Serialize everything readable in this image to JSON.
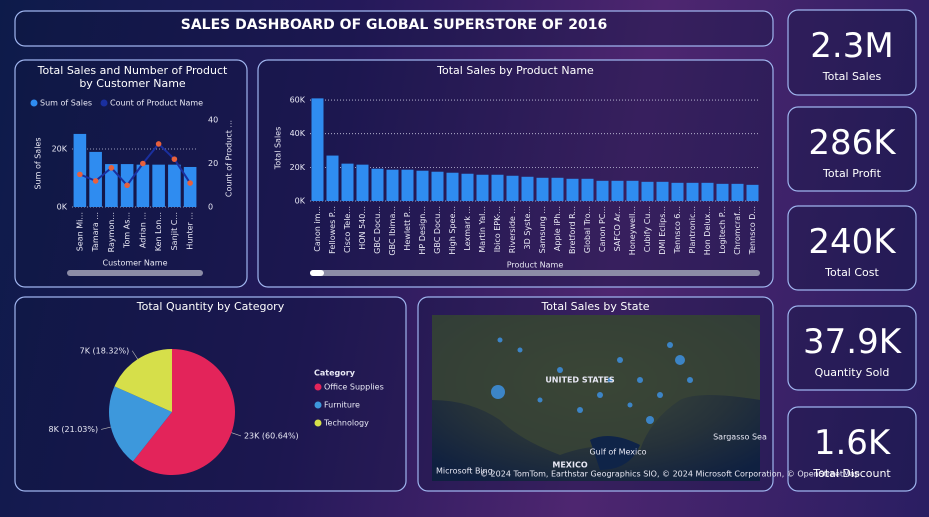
{
  "header": {
    "title": "SALES DASHBOARD OF GLOBAL SUPERSTORE OF 2016"
  },
  "kpis": [
    {
      "value": "2.3M",
      "label": "Total Sales"
    },
    {
      "value": "286K",
      "label": "Total Profit"
    },
    {
      "value": "240K",
      "label": "Total Cost"
    },
    {
      "value": "37.9K",
      "label": "Quantity Sold"
    },
    {
      "value": "1.6K",
      "label": "Total Discount"
    }
  ],
  "chart_data": [
    {
      "type": "bar",
      "title": "Total Sales and Number of Product by Customer Name",
      "x_label": "Customer Name",
      "y_label": "Sum of Sales",
      "y2_label": "Count of Product ...",
      "categories": [
        "Sean Mi...",
        "Tamara ...",
        "Raymon...",
        "Tom As...",
        "Adrian ...",
        "Ken Lon...",
        "Sanjit C...",
        "Hunter ..."
      ],
      "series": [
        {
          "name": "Sum of Sales",
          "color": "#2f8cf0",
          "values": [
            25200,
            19000,
            14800,
            14800,
            14600,
            14600,
            14600,
            13800
          ]
        },
        {
          "name": "Count of Product Name",
          "type": "line",
          "axis": "y2",
          "color": "#1a2f9e",
          "marker_color": "#e8603c",
          "values": [
            15,
            12,
            18,
            10,
            20,
            29,
            22,
            11
          ]
        }
      ],
      "ylim": [
        0,
        30000
      ],
      "yticks": [
        {
          "value": 0,
          "label": "0K"
        },
        {
          "value": 20000,
          "label": "20K"
        }
      ],
      "y2lim": [
        0,
        40
      ],
      "y2ticks": [
        0,
        20,
        40
      ],
      "grid": true
    },
    {
      "type": "bar",
      "title": "Total Sales by Product Name",
      "x_label": "Product Name",
      "y_label": "Total Sales",
      "color": "#2f8cf0",
      "categories": [
        "Canon im...",
        "Fellowes P...",
        "Cisco Tele...",
        "HON 540...",
        "GBC Docu...",
        "GBC Ibima...",
        "Hewlett P...",
        "HP Design...",
        "GBC Docu...",
        "High Spee...",
        "Lexmark ...",
        "Martin Yal...",
        "Ibico EPK-...",
        "Riverside ...",
        "3D Syste...",
        "Samsung ...",
        "Apple iPh...",
        "Bretford R...",
        "Global Tro...",
        "Canon PC...",
        "SAFCO Ar...",
        "Honeywell...",
        "Cubify Cu...",
        "DMI Eclips...",
        "Tennsco 6...",
        "Plantronic...",
        "Hon Delux...",
        "Logitech P...",
        "Chromcraf...",
        "Tennsco D..."
      ],
      "values": [
        61000,
        27000,
        22200,
        21600,
        19200,
        18600,
        18600,
        18000,
        17400,
        16800,
        16200,
        15600,
        15600,
        15000,
        14400,
        13800,
        13800,
        13200,
        13200,
        12000,
        12000,
        12000,
        11400,
        11400,
        10800,
        10800,
        10800,
        10200,
        10200,
        9600
      ],
      "ylim": [
        0,
        63000
      ],
      "yticks": [
        {
          "value": 0,
          "label": "0K"
        },
        {
          "value": 20000,
          "label": "20K"
        },
        {
          "value": 40000,
          "label": "40K"
        },
        {
          "value": 60000,
          "label": "60K"
        }
      ],
      "grid": true
    },
    {
      "type": "pie",
      "title": "Total Quantity by Category",
      "legend_title": "Category",
      "categories": [
        "Office Supplies",
        "Furniture",
        "Technology"
      ],
      "values": [
        60.64,
        21.03,
        18.32
      ],
      "value_labels": [
        "23K (60.64%)",
        "8K (21.03%)",
        "7K (18.32%)"
      ],
      "colors": [
        "#e3245a",
        "#3d98dc",
        "#d6df4a"
      ]
    }
  ],
  "map": {
    "title": "Total Sales by State",
    "labels": [
      "UNITED STATES",
      "MEXICO",
      "Gulf of Mexico",
      "Sargasso Sea"
    ],
    "attribution": "Microsoft Bing",
    "credits": "© 2024 TomTom, Earthstar Geographics SIO, © 2024 Microsoft Corporation, © OpenStreetMap"
  }
}
